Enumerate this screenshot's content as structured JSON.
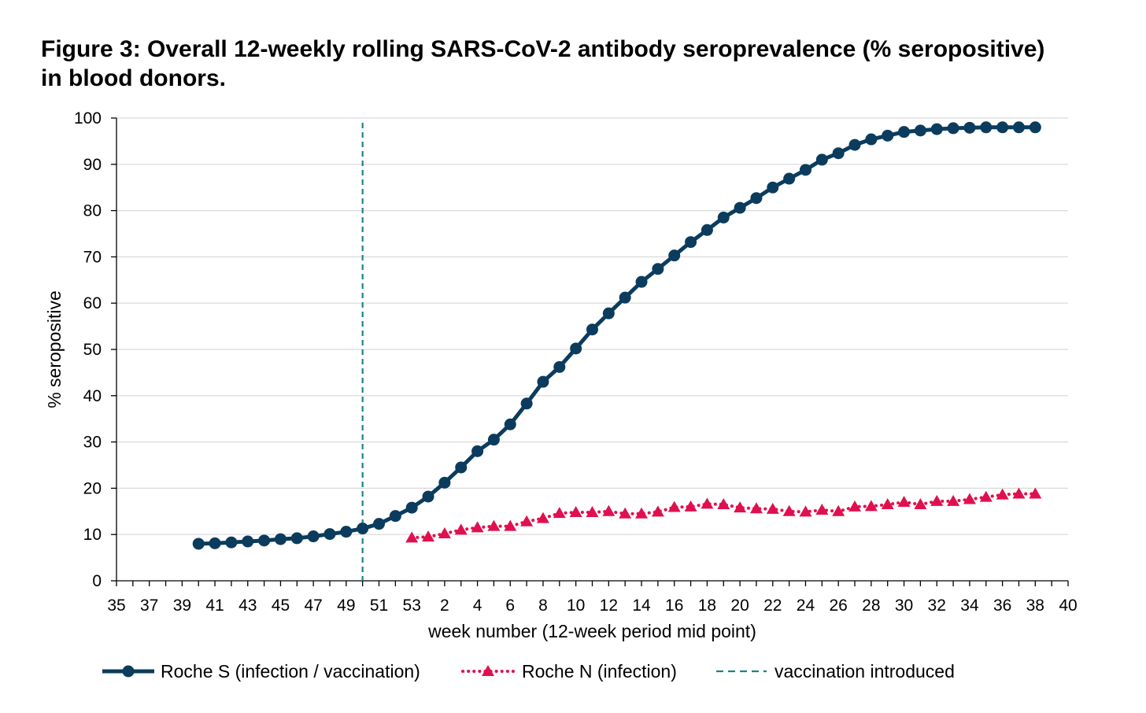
{
  "title": "Figure 3: Overall 12-weekly rolling SARS-CoV-2 antibody seroprevalence (% seropositive) in blood donors.",
  "colors": {
    "roche_s": "#0b3c5d",
    "roche_n": "#e0104f",
    "vaccination": "#1a8585",
    "grid": "#d9d9d9"
  },
  "chart_data": {
    "type": "line",
    "title": "Figure 3: Overall 12-weekly rolling SARS-CoV-2 antibody seroprevalence (% seropositive) in blood donors.",
    "xlabel": "week number (12-week period mid point)",
    "ylabel": "% seropositive",
    "ylim": [
      0,
      100
    ],
    "yticks": [
      0,
      10,
      20,
      30,
      40,
      50,
      60,
      70,
      80,
      90,
      100
    ],
    "grid": "horizontal",
    "x_categories": [
      "35",
      "36",
      "37",
      "38",
      "39",
      "40",
      "41",
      "42",
      "43",
      "44",
      "45",
      "46",
      "47",
      "48",
      "49",
      "50",
      "51",
      "52",
      "53",
      "1",
      "2",
      "3",
      "4",
      "5",
      "6",
      "7",
      "8",
      "9",
      "10",
      "11",
      "12",
      "13",
      "14",
      "15",
      "16",
      "17",
      "18",
      "19",
      "20",
      "21",
      "22",
      "23",
      "24",
      "25",
      "26",
      "27",
      "28",
      "29",
      "30",
      "31",
      "32",
      "33",
      "34",
      "35",
      "36",
      "37",
      "38",
      "39",
      "40"
    ],
    "x_tick_labels": [
      "35",
      "37",
      "39",
      "41",
      "43",
      "45",
      "47",
      "49",
      "51",
      "53",
      "2",
      "4",
      "6",
      "8",
      "10",
      "12",
      "14",
      "16",
      "18",
      "20",
      "22",
      "24",
      "26",
      "28",
      "30",
      "32",
      "34",
      "36",
      "38",
      "40"
    ],
    "legend_position": "bottom",
    "series": [
      {
        "name": "Roche S (infection / vaccination)",
        "marker": "circle",
        "line": "solid",
        "x": [
          "40",
          "41",
          "42",
          "43",
          "44",
          "45",
          "46",
          "47",
          "48",
          "49",
          "50",
          "51",
          "52",
          "53",
          "1",
          "2",
          "3",
          "4",
          "5",
          "6",
          "7",
          "8",
          "9",
          "10",
          "11",
          "12",
          "13",
          "14",
          "15",
          "16",
          "17",
          "18",
          "19",
          "20",
          "21",
          "22",
          "23",
          "24",
          "25",
          "26",
          "27",
          "28",
          "29",
          "30",
          "31",
          "32",
          "33",
          "34",
          "35",
          "36",
          "37",
          "38"
        ],
        "y": [
          8.0,
          8.1,
          8.3,
          8.5,
          8.7,
          9.0,
          9.2,
          9.6,
          10.1,
          10.6,
          11.3,
          12.3,
          14.0,
          15.8,
          18.2,
          21.2,
          24.5,
          28.0,
          30.5,
          33.8,
          38.3,
          43.0,
          46.2,
          50.2,
          54.3,
          57.8,
          61.2,
          64.6,
          67.4,
          70.3,
          73.2,
          75.8,
          78.5,
          80.6,
          82.7,
          85.0,
          86.9,
          88.8,
          91.0,
          92.4,
          94.2,
          95.4,
          96.2,
          97.0,
          97.3,
          97.6,
          97.8,
          97.9,
          98.0,
          98.0,
          98.0,
          98.0
        ]
      },
      {
        "name": "Roche N (infection)",
        "marker": "triangle",
        "line": "dotted",
        "x": [
          "53",
          "1",
          "2",
          "3",
          "4",
          "5",
          "6",
          "7",
          "8",
          "9",
          "10",
          "11",
          "12",
          "13",
          "14",
          "15",
          "16",
          "17",
          "18",
          "19",
          "20",
          "21",
          "22",
          "23",
          "24",
          "25",
          "26",
          "27",
          "28",
          "29",
          "30",
          "31",
          "32",
          "33",
          "34",
          "35",
          "36",
          "37",
          "38"
        ],
        "y": [
          9.3,
          9.5,
          10.2,
          11.0,
          11.5,
          11.8,
          11.8,
          12.8,
          13.5,
          14.6,
          14.8,
          14.8,
          15.0,
          14.5,
          14.5,
          14.9,
          15.9,
          16.0,
          16.6,
          16.5,
          15.8,
          15.6,
          15.5,
          15.0,
          14.9,
          15.3,
          15.0,
          16.0,
          16.1,
          16.5,
          17.0,
          16.5,
          17.2,
          17.2,
          17.6,
          18.1,
          18.6,
          18.8,
          18.8
        ]
      },
      {
        "name": "vaccination introduced",
        "marker": "none",
        "line": "dashed",
        "x_position": "50"
      }
    ]
  }
}
